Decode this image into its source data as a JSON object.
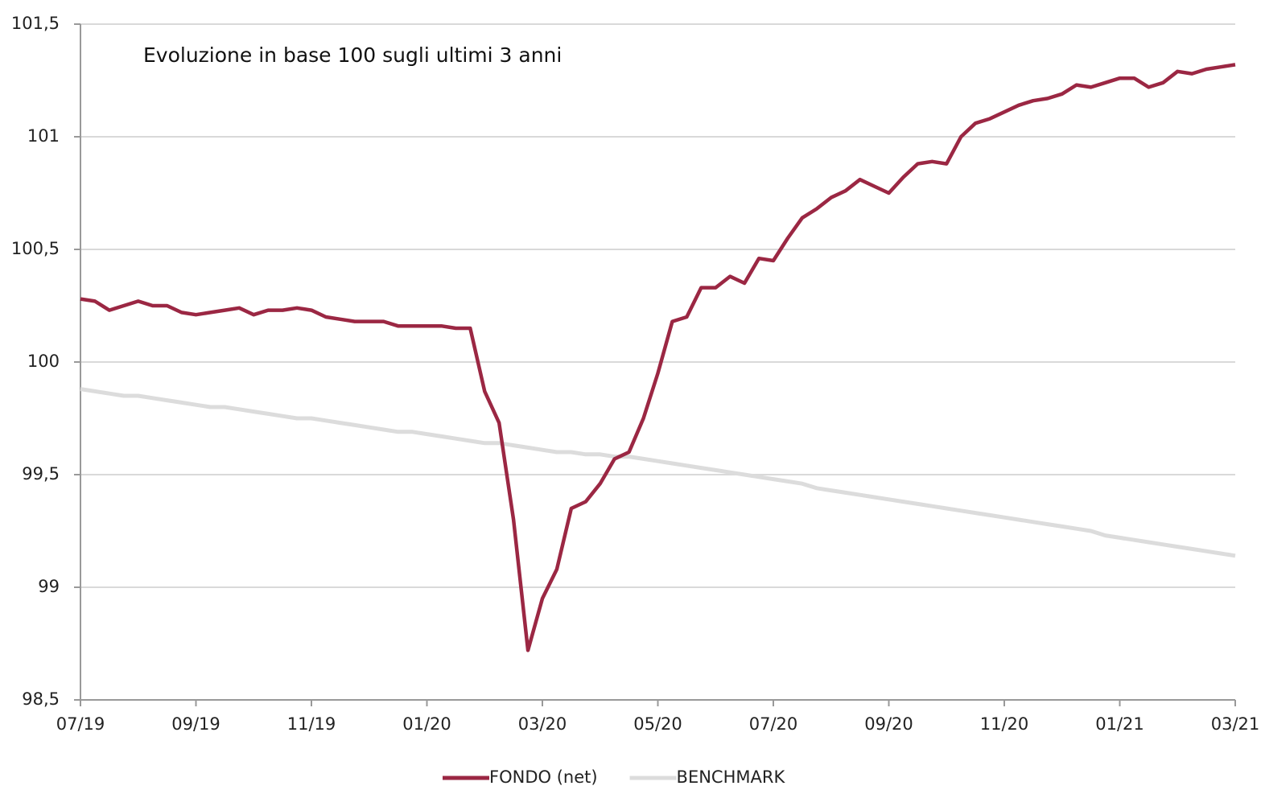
{
  "chart_data": {
    "type": "line",
    "title": "Evoluzione in base 100 sugli ultimi 3 anni",
    "categories": [
      "07/19",
      null,
      null,
      null,
      null,
      null,
      null,
      null,
      "09/19",
      null,
      null,
      null,
      null,
      null,
      null,
      null,
      "11/19",
      null,
      null,
      null,
      null,
      null,
      null,
      null,
      "01/20",
      null,
      null,
      null,
      null,
      null,
      null,
      null,
      "03/20",
      null,
      null,
      null,
      null,
      null,
      null,
      null,
      "05/20",
      null,
      null,
      null,
      null,
      null,
      null,
      null,
      "07/20",
      null,
      null,
      null,
      null,
      null,
      null,
      null,
      "09/20",
      null,
      null,
      null,
      null,
      null,
      null,
      null,
      "11/20",
      null,
      null,
      null,
      null,
      null,
      null,
      null,
      "01/21",
      null,
      null,
      null,
      null,
      null,
      null,
      null,
      "03/21"
    ],
    "series": [
      {
        "name": "FONDO (net)",
        "color": "#9b2743",
        "values": [
          100.28,
          100.27,
          100.23,
          100.25,
          100.27,
          100.25,
          100.25,
          100.22,
          100.21,
          100.22,
          100.23,
          100.24,
          100.21,
          100.23,
          100.23,
          100.24,
          100.23,
          100.2,
          100.19,
          100.18,
          100.18,
          100.18,
          100.16,
          100.16,
          100.16,
          100.16,
          100.15,
          100.15,
          99.87,
          99.73,
          99.3,
          98.72,
          98.95,
          99.08,
          99.35,
          99.38,
          99.46,
          99.57,
          99.6,
          99.75,
          99.95,
          100.18,
          100.2,
          100.33,
          100.33,
          100.38,
          100.35,
          100.46,
          100.45,
          100.55,
          100.64,
          100.68,
          100.73,
          100.76,
          100.81,
          100.78,
          100.75,
          100.82,
          100.88,
          100.89,
          100.88,
          101.0,
          101.06,
          101.08,
          101.11,
          101.14,
          101.16,
          101.17,
          101.19,
          101.23,
          101.22,
          101.24,
          101.26,
          101.26,
          101.22,
          101.24,
          101.29,
          101.28,
          101.3,
          101.31,
          101.32
        ]
      },
      {
        "name": "BENCHMARK",
        "color": "#dcdcdc",
        "values": [
          99.88,
          99.87,
          99.86,
          99.85,
          99.85,
          99.84,
          99.83,
          99.82,
          99.81,
          99.8,
          99.8,
          99.79,
          99.78,
          99.77,
          99.76,
          99.75,
          99.75,
          99.74,
          99.73,
          99.72,
          99.71,
          99.7,
          99.69,
          99.69,
          99.68,
          99.67,
          99.66,
          99.65,
          99.64,
          99.64,
          99.63,
          99.62,
          99.61,
          99.6,
          99.6,
          99.59,
          99.59,
          99.58,
          99.58,
          99.57,
          99.56,
          99.55,
          99.54,
          99.53,
          99.52,
          99.51,
          99.5,
          99.49,
          99.48,
          99.47,
          99.46,
          99.44,
          99.43,
          99.42,
          99.41,
          99.4,
          99.39,
          99.38,
          99.37,
          99.36,
          99.35,
          99.34,
          99.33,
          99.32,
          99.31,
          99.3,
          99.29,
          99.28,
          99.27,
          99.26,
          99.25,
          99.23,
          99.22,
          99.21,
          99.2,
          99.19,
          99.18,
          99.17,
          99.16,
          99.15,
          99.14
        ]
      }
    ],
    "ylim": [
      98.5,
      101.5
    ],
    "yticks": [
      {
        "value": 98.5,
        "label": "98,5"
      },
      99,
      {
        "value": 99.5,
        "label": "99,5"
      },
      100,
      {
        "value": 100.5,
        "label": "100,5"
      },
      101,
      {
        "value": 101.5,
        "label": "101,5"
      }
    ],
    "grid": true
  }
}
